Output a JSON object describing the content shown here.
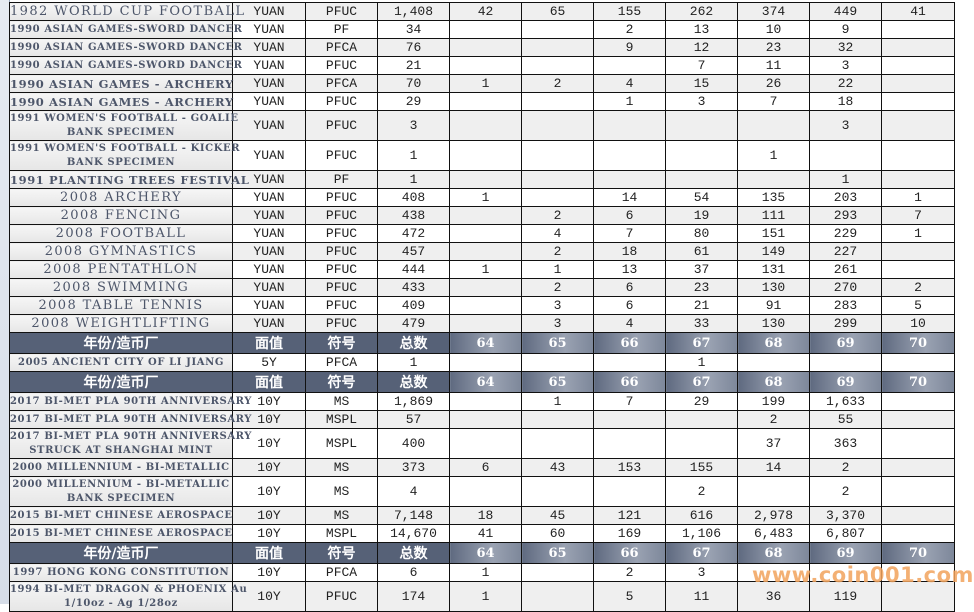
{
  "header": {
    "name": "年份/造币厂",
    "face": "面值",
    "symbol": "符号",
    "total": "总数",
    "years": [
      "64",
      "65",
      "66",
      "67",
      "68",
      "69",
      "70"
    ]
  },
  "groups": [
    {
      "rows": [
        {
          "name": [
            "1982 WORLD CUP FOOTBALL"
          ],
          "big": true,
          "face": "YUAN",
          "symbol": "PFUC",
          "total": "1,408",
          "counts": [
            "42",
            "65",
            "155",
            "262",
            "374",
            "449",
            "41"
          ]
        },
        {
          "name": [
            "1990 ASIAN GAMES-SWORD DANCER"
          ],
          "face": "YUAN",
          "symbol": "PF",
          "total": "34",
          "counts": [
            "",
            "",
            "2",
            "13",
            "10",
            "9",
            ""
          ]
        },
        {
          "name": [
            "1990 ASIAN GAMES-SWORD DANCER"
          ],
          "face": "YUAN",
          "symbol": "PFCA",
          "total": "76",
          "counts": [
            "",
            "",
            "9",
            "12",
            "23",
            "32",
            ""
          ]
        },
        {
          "name": [
            "1990 ASIAN GAMES-SWORD DANCER"
          ],
          "face": "YUAN",
          "symbol": "PFUC",
          "total": "21",
          "counts": [
            "",
            "",
            "",
            "7",
            "11",
            "3",
            ""
          ]
        },
        {
          "name": [
            "1990 ASIAN GAMES - ARCHERY"
          ],
          "mid": true,
          "face": "YUAN",
          "symbol": "PFCA",
          "total": "70",
          "counts": [
            "1",
            "2",
            "4",
            "15",
            "26",
            "22",
            ""
          ]
        },
        {
          "name": [
            "1990 ASIAN GAMES - ARCHERY"
          ],
          "mid": true,
          "face": "YUAN",
          "symbol": "PFUC",
          "total": "29",
          "counts": [
            "",
            "",
            "1",
            "3",
            "7",
            "18",
            ""
          ]
        },
        {
          "name": [
            "1991 WOMEN'S FOOTBALL - GOALIE",
            "BANK SPECIMEN"
          ],
          "face": "YUAN",
          "symbol": "PFUC",
          "total": "3",
          "counts": [
            "",
            "",
            "",
            "",
            "",
            "3",
            ""
          ]
        },
        {
          "name": [
            "1991 WOMEN'S FOOTBALL - KICKER",
            "BANK SPECIMEN"
          ],
          "face": "YUAN",
          "symbol": "PFUC",
          "total": "1",
          "counts": [
            "",
            "",
            "",
            "",
            "1",
            "",
            ""
          ]
        },
        {
          "name": [
            "1991 PLANTING TREES FESTIVAL"
          ],
          "mid": true,
          "face": "YUAN",
          "symbol": "PF",
          "total": "1",
          "counts": [
            "",
            "",
            "",
            "",
            "",
            "1",
            ""
          ]
        },
        {
          "name": [
            "2008 ARCHERY"
          ],
          "big": true,
          "face": "YUAN",
          "symbol": "PFUC",
          "total": "408",
          "counts": [
            "1",
            "",
            "14",
            "54",
            "135",
            "203",
            "1"
          ]
        },
        {
          "name": [
            "2008 FENCING"
          ],
          "big": true,
          "face": "YUAN",
          "symbol": "PFUC",
          "total": "438",
          "counts": [
            "",
            "2",
            "6",
            "19",
            "111",
            "293",
            "7"
          ]
        },
        {
          "name": [
            "2008 FOOTBALL"
          ],
          "big": true,
          "face": "YUAN",
          "symbol": "PFUC",
          "total": "472",
          "counts": [
            "",
            "4",
            "7",
            "80",
            "151",
            "229",
            "1"
          ]
        },
        {
          "name": [
            "2008 GYMNASTICS"
          ],
          "big": true,
          "face": "YUAN",
          "symbol": "PFUC",
          "total": "457",
          "counts": [
            "",
            "2",
            "18",
            "61",
            "149",
            "227",
            ""
          ]
        },
        {
          "name": [
            "2008 PENTATHLON"
          ],
          "big": true,
          "face": "YUAN",
          "symbol": "PFUC",
          "total": "444",
          "counts": [
            "1",
            "1",
            "13",
            "37",
            "131",
            "261",
            ""
          ]
        },
        {
          "name": [
            "2008 SWIMMING"
          ],
          "big": true,
          "face": "YUAN",
          "symbol": "PFUC",
          "total": "433",
          "counts": [
            "",
            "2",
            "6",
            "23",
            "130",
            "270",
            "2"
          ]
        },
        {
          "name": [
            "2008 TABLE TENNIS"
          ],
          "big": true,
          "face": "YUAN",
          "symbol": "PFUC",
          "total": "409",
          "counts": [
            "",
            "3",
            "6",
            "21",
            "91",
            "283",
            "5"
          ]
        },
        {
          "name": [
            "2008 WEIGHTLIFTING"
          ],
          "big": true,
          "face": "YUAN",
          "symbol": "PFUC",
          "total": "479",
          "counts": [
            "",
            "3",
            "4",
            "33",
            "130",
            "299",
            "10"
          ]
        }
      ]
    },
    {
      "header": true,
      "rows": [
        {
          "name": [
            "2005 ANCIENT CITY OF LI JIANG"
          ],
          "face": "5Y",
          "symbol": "PFCA",
          "total": "1",
          "counts": [
            "",
            "",
            "",
            "1",
            "",
            "",
            ""
          ]
        }
      ]
    },
    {
      "header": true,
      "rows": [
        {
          "name": [
            "2017 BI-MET PLA 90TH ANNIVERSARY"
          ],
          "face": "10Y",
          "symbol": "MS",
          "total": "1,869",
          "counts": [
            "",
            "1",
            "7",
            "29",
            "199",
            "1,633",
            ""
          ]
        },
        {
          "name": [
            "2017 BI-MET PLA 90TH ANNIVERSARY"
          ],
          "face": "10Y",
          "symbol": "MSPL",
          "total": "57",
          "counts": [
            "",
            "",
            "",
            "",
            "2",
            "55",
            ""
          ]
        },
        {
          "name": [
            "2017 BI-MET PLA 90TH ANNIVERSARY",
            "STRUCK AT SHANGHAI MINT"
          ],
          "face": "10Y",
          "symbol": "MSPL",
          "total": "400",
          "counts": [
            "",
            "",
            "",
            "",
            "37",
            "363",
            ""
          ]
        },
        {
          "name": [
            "2000 MILLENNIUM - BI-METALLIC"
          ],
          "face": "10Y",
          "symbol": "MS",
          "total": "373",
          "counts": [
            "6",
            "43",
            "153",
            "155",
            "14",
            "2",
            ""
          ]
        },
        {
          "name": [
            "2000 MILLENNIUM - BI-METALLIC",
            "BANK SPECIMEN"
          ],
          "face": "10Y",
          "symbol": "MS",
          "total": "4",
          "counts": [
            "",
            "",
            "",
            "2",
            "",
            "2",
            ""
          ]
        },
        {
          "name": [
            "2015 BI-MET CHINESE AEROSPACE"
          ],
          "face": "10Y",
          "symbol": "MS",
          "total": "7,148",
          "counts": [
            "18",
            "45",
            "121",
            "616",
            "2,978",
            "3,370",
            ""
          ]
        },
        {
          "name": [
            "2015 BI-MET CHINESE AEROSPACE"
          ],
          "face": "10Y",
          "symbol": "MSPL",
          "total": "14,670",
          "counts": [
            "41",
            "60",
            "169",
            "1,106",
            "6,483",
            "6,807",
            ""
          ]
        }
      ]
    },
    {
      "header": true,
      "rows": [
        {
          "name": [
            "1997 HONG KONG CONSTITUTION"
          ],
          "face": "10Y",
          "symbol": "PFCA",
          "total": "6",
          "counts": [
            "1",
            "",
            "2",
            "3",
            "",
            "",
            ""
          ]
        },
        {
          "name": [
            "1994 BI-MET DRAGON & PHOENIX Au",
            "1/10oz - Ag 1/28oz"
          ],
          "face": "10Y",
          "symbol": "PFUC",
          "total": "174",
          "counts": [
            "1",
            "",
            "5",
            "11",
            "36",
            "119",
            ""
          ]
        }
      ]
    }
  ],
  "watermark": "www.coin001.com",
  "colors": {
    "header_bg": "#566177",
    "name_text": "#4d566a",
    "watermark": "#f2a35c"
  }
}
